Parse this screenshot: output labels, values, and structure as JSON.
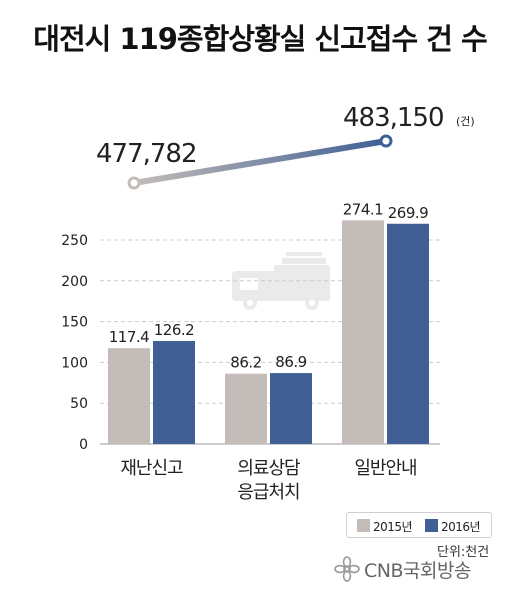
{
  "title": "대전시 119종합상황실 신고접수 건 수",
  "colors": {
    "y2015": "#c4bcb9",
    "y2016": "#3f5f95",
    "text": "#222222",
    "grid": "#cccccc"
  },
  "legend": [
    {
      "label": "2015년"
    },
    {
      "label": "2016년"
    }
  ],
  "unit_label": "단위:천건",
  "logo_text": "CNB국회방송",
  "chart_data": [
    {
      "type": "bar",
      "categories": [
        "재난신고",
        "의료상담\n응급처치",
        "일반안내"
      ],
      "series": [
        {
          "name": "2015년",
          "values": [
            117.4,
            86.2,
            274.1
          ]
        },
        {
          "name": "2016년",
          "values": [
            126.2,
            86.9,
            269.9
          ]
        }
      ],
      "value_labels": [
        [
          "117.4",
          "86.2",
          "274.1"
        ],
        [
          "126.2",
          "86.9",
          "269.9"
        ]
      ],
      "ylim": [
        0,
        250
      ],
      "yticks": [
        0,
        50,
        100,
        150,
        200,
        250
      ],
      "grid": true,
      "legend_position": "bottom-right",
      "unit": "단위:천건"
    },
    {
      "type": "line",
      "categories": [
        "2015년",
        "2016년"
      ],
      "values": [
        477782,
        483150
      ],
      "value_labels": [
        "477,782",
        "483,150"
      ],
      "value_unit": "(건)"
    }
  ]
}
